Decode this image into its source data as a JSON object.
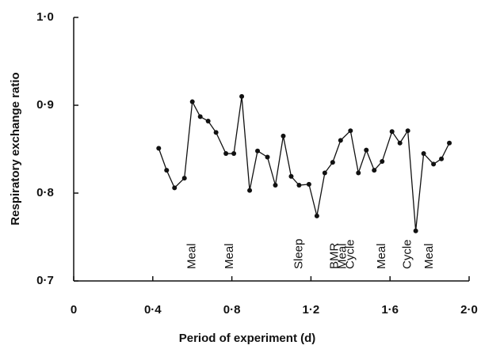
{
  "chart_data": {
    "type": "line",
    "xlabel": "Period of experiment (d)",
    "ylabel": "Respiratory exchange ratio",
    "x": [
      0.43,
      0.47,
      0.51,
      0.56,
      0.6,
      0.64,
      0.68,
      0.72,
      0.77,
      0.81,
      0.85,
      0.89,
      0.93,
      0.98,
      1.02,
      1.06,
      1.1,
      1.14,
      1.19,
      1.23,
      1.27,
      1.31,
      1.35,
      1.4,
      1.44,
      1.48,
      1.52,
      1.56,
      1.61,
      1.65,
      1.69,
      1.73,
      1.77,
      1.82,
      1.86,
      1.9
    ],
    "series": [
      {
        "color": "#111111",
        "values": [
          0.851,
          0.826,
          0.806,
          0.817,
          0.904,
          0.887,
          0.882,
          0.869,
          0.845,
          0.845,
          0.91,
          0.803,
          0.848,
          0.841,
          0.809,
          0.865,
          0.819,
          0.809,
          0.81,
          0.774,
          0.823,
          0.835,
          0.86,
          0.871,
          0.823,
          0.849,
          0.826,
          0.836,
          0.87,
          0.857,
          0.871,
          0.757,
          0.845,
          0.833,
          0.839,
          0.857
        ]
      }
    ],
    "xlim": [
      0,
      2.0
    ],
    "ylim": [
      0.7,
      1.0
    ],
    "xticks": [
      0,
      {
        "value": 0.4,
        "label": "0·4"
      },
      {
        "value": 0.8,
        "label": "0·8"
      },
      {
        "value": 1.2,
        "label": "1·2"
      },
      {
        "value": 1.6,
        "label": "1·6"
      },
      {
        "value": 2.0,
        "label": "2·0"
      }
    ],
    "yticks": [
      {
        "value": 0.7,
        "label": "0·7"
      },
      {
        "value": 0.8,
        "label": "0·8"
      },
      {
        "value": 0.9,
        "label": "0·9"
      },
      {
        "value": 1.0,
        "label": "1·0"
      }
    ],
    "annotations": [
      {
        "text": "Meal",
        "x": 0.6
      },
      {
        "text": "Meal",
        "x": 0.79
      },
      {
        "text": "Sleep",
        "x": 1.14
      },
      {
        "text": "BMR",
        "x": 1.32
      },
      {
        "text": "Meal",
        "x": 1.36
      },
      {
        "text": "Cycle",
        "x": 1.4
      },
      {
        "text": "Meal",
        "x": 1.56
      },
      {
        "text": "Cycle",
        "x": 1.69
      },
      {
        "text": "Meal",
        "x": 1.8
      }
    ]
  }
}
